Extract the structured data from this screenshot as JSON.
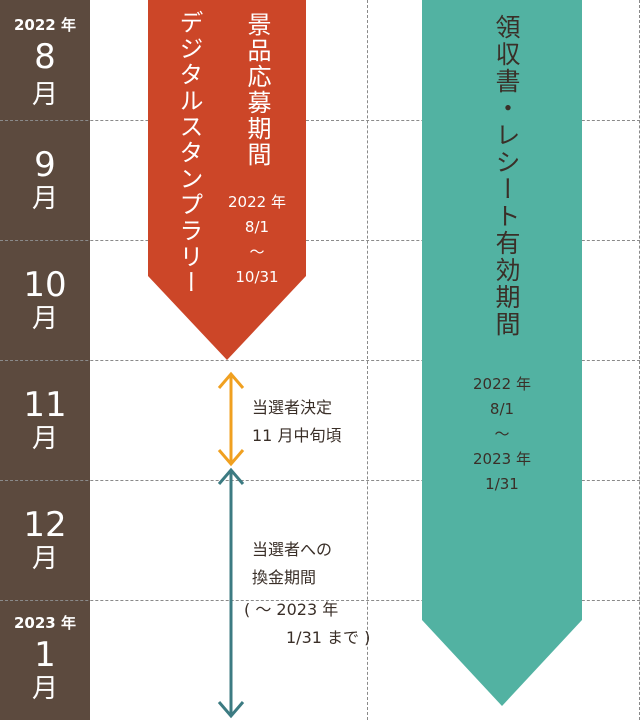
{
  "timeline": {
    "months": [
      {
        "year": "2022 年",
        "month": "8",
        "unit": "月"
      },
      {
        "year": "",
        "month": "9",
        "unit": "月"
      },
      {
        "year": "",
        "month": "10",
        "unit": "月"
      },
      {
        "year": "",
        "month": "11",
        "unit": "月"
      },
      {
        "year": "",
        "month": "12",
        "unit": "月"
      },
      {
        "year": "2023 年",
        "month": "1",
        "unit": "月"
      }
    ]
  },
  "rally": {
    "title": "デジタルスタンプラリー",
    "period_label": "景品応募期間",
    "date_year": "2022 年",
    "date_start": "8/1",
    "date_sep": "～",
    "date_end": "10/31",
    "color": "#cc4628"
  },
  "receipt": {
    "title": "領収書・レシート有効期間",
    "date_year": "2022 年",
    "date_start": "8/1",
    "date_sep": "～",
    "date_end_year": "2023 年",
    "date_end": "1/31",
    "color": "#52b2a2"
  },
  "winner_decision": {
    "line1": "当選者決定",
    "line2": "11 月中旬頃",
    "arrow_color": "#f0a020"
  },
  "exchange": {
    "line1": "当選者への",
    "line2": "換金期間",
    "line3": "( ～ 2023 年",
    "line4": "1/31 まで )",
    "arrow_color": "#3c7b82"
  }
}
